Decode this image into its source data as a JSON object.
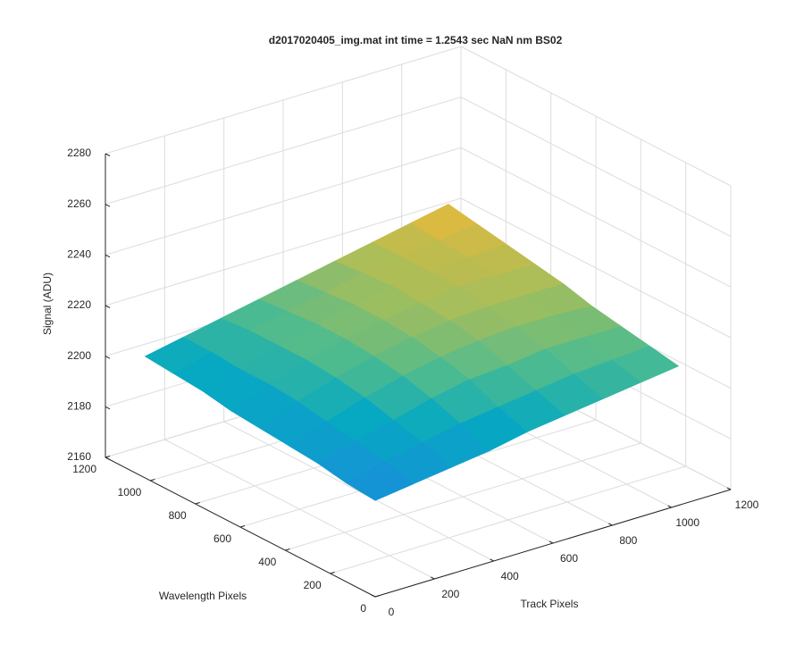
{
  "chart_data": {
    "type": "surface",
    "title": "d2017020405_img.mat int time = 1.2543 sec  NaN nm BS02",
    "xlabel": "Track Pixels",
    "ylabel": "Wavelength Pixels",
    "zlabel": "Signal (ADU)",
    "colormap": "parula",
    "grid": true,
    "x": [
      0,
      128,
      256,
      384,
      512,
      640,
      768,
      896,
      1024
    ],
    "y": [
      0,
      128,
      256,
      384,
      512,
      640,
      768,
      896,
      1024
    ],
    "z": [
      [
        2198,
        2200,
        2202,
        2204,
        2207,
        2209,
        2211,
        2213,
        2215
      ],
      [
        2199,
        2203,
        2206,
        2209,
        2211,
        2213,
        2215,
        2216,
        2217
      ],
      [
        2201,
        2205,
        2209,
        2213,
        2216,
        2217,
        2219,
        2219,
        2219
      ],
      [
        2202,
        2207,
        2212,
        2216,
        2219,
        2221,
        2222,
        2222,
        2221
      ],
      [
        2203,
        2209,
        2214,
        2218,
        2221,
        2223,
        2224,
        2224,
        2224
      ],
      [
        2204,
        2210,
        2215,
        2219,
        2222,
        2224,
        2226,
        2226,
        2226
      ],
      [
        2206,
        2210,
        2215,
        2219,
        2222,
        2225,
        2226,
        2227,
        2228
      ],
      [
        2207,
        2211,
        2215,
        2218,
        2221,
        2224,
        2226,
        2228,
        2230
      ],
      [
        2208,
        2211,
        2214,
        2217,
        2220,
        2223,
        2226,
        2229,
        2232
      ]
    ],
    "xlim": [
      0,
      1200
    ],
    "xticks": [
      0,
      200,
      400,
      600,
      800,
      1000,
      1200
    ],
    "ylim": [
      0,
      1200
    ],
    "yticks": [
      0,
      200,
      400,
      600,
      800,
      1000,
      1200
    ],
    "zlim": [
      2160,
      2280
    ],
    "zticks": [
      2160,
      2180,
      2200,
      2220,
      2240,
      2260,
      2280
    ]
  }
}
